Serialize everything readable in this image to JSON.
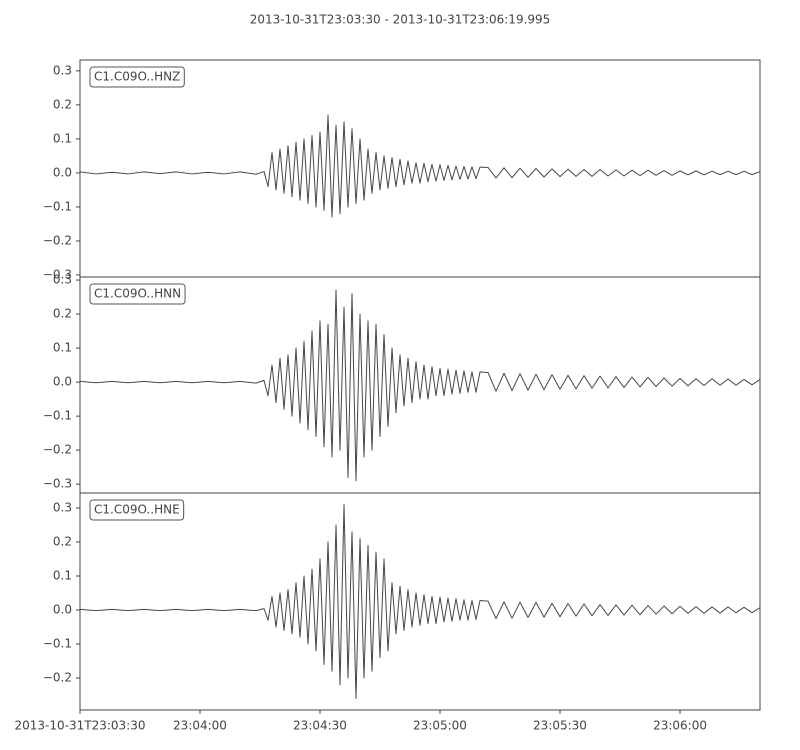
{
  "chart_data": [
    {
      "type": "line",
      "title": "2013-10-31T23:03:30  -  2013-10-31T23:06:19.995",
      "label": "C1.C09O..HNZ",
      "color": "#474747",
      "xlim": [
        0,
        169.995
      ],
      "ylim": [
        -0.306,
        0.332
      ],
      "yticks": [
        {
          "value": -0.3,
          "label": "−0.3"
        },
        {
          "value": -0.2,
          "label": "−0.2"
        },
        {
          "value": -0.1,
          "label": "−0.1"
        },
        {
          "value": 0.0,
          "label": "0.0"
        },
        {
          "value": 0.1,
          "label": "0.1"
        },
        {
          "value": 0.2,
          "label": "0.2"
        },
        {
          "value": 0.3,
          "label": "0.3"
        }
      ],
      "x": [
        0,
        4,
        8,
        12,
        16,
        20,
        24,
        28,
        32,
        36,
        40,
        44,
        46,
        47,
        48,
        49,
        50,
        51,
        52,
        53,
        54,
        55,
        56,
        57,
        58,
        59,
        60,
        61,
        62,
        63,
        64,
        65,
        66,
        67,
        68,
        69,
        70,
        71,
        72,
        73,
        74,
        75,
        76,
        77,
        78,
        79,
        80,
        81,
        82,
        83,
        84,
        85,
        86,
        87,
        88,
        89,
        90,
        91,
        92,
        93,
        94,
        95,
        96,
        97,
        98,
        99,
        100,
        102,
        104,
        106,
        108,
        110,
        112,
        114,
        116,
        118,
        120,
        122,
        124,
        126,
        128,
        130,
        132,
        134,
        136,
        138,
        140,
        142,
        144,
        146,
        148,
        150,
        152,
        154,
        156,
        158,
        160,
        162,
        164,
        166,
        168,
        170
      ],
      "values": [
        0.003,
        -0.003,
        0.002,
        -0.003,
        0.003,
        -0.002,
        0.003,
        -0.003,
        0.002,
        -0.003,
        0.003,
        -0.004,
        0.004,
        -0.04,
        0.06,
        -0.05,
        0.07,
        -0.06,
        0.08,
        -0.07,
        0.09,
        -0.08,
        0.1,
        -0.09,
        0.11,
        -0.1,
        0.12,
        -0.11,
        0.17,
        -0.13,
        0.14,
        -0.12,
        0.15,
        -0.1,
        0.13,
        -0.09,
        0.1,
        -0.08,
        0.07,
        -0.06,
        0.06,
        -0.05,
        0.05,
        -0.045,
        0.045,
        -0.04,
        0.04,
        -0.035,
        0.035,
        -0.03,
        0.03,
        -0.03,
        0.028,
        -0.026,
        0.025,
        -0.024,
        0.024,
        -0.022,
        0.022,
        -0.02,
        0.02,
        -0.019,
        0.019,
        -0.018,
        0.018,
        -0.017,
        0.017,
        0.016,
        -0.015,
        0.015,
        -0.014,
        0.014,
        -0.013,
        0.013,
        -0.012,
        0.012,
        -0.011,
        0.011,
        -0.01,
        0.01,
        -0.01,
        0.01,
        -0.009,
        0.009,
        -0.009,
        0.008,
        -0.008,
        0.008,
        -0.007,
        0.007,
        -0.007,
        0.006,
        -0.006,
        0.006,
        -0.006,
        0.005,
        -0.005,
        0.005,
        -0.005,
        0.005,
        -0.005,
        0.004
      ]
    },
    {
      "type": "line",
      "label": "C1.C09O..HNN",
      "color": "#474747",
      "xlim": [
        0,
        169.995
      ],
      "ylim": [
        -0.326,
        0.309
      ],
      "yticks": [
        {
          "value": -0.3,
          "label": "−0.3"
        },
        {
          "value": -0.2,
          "label": "−0.2"
        },
        {
          "value": -0.1,
          "label": "−0.1"
        },
        {
          "value": 0.0,
          "label": "0.0"
        },
        {
          "value": 0.1,
          "label": "0.1"
        },
        {
          "value": 0.2,
          "label": "0.2"
        },
        {
          "value": 0.3,
          "label": "0.3"
        }
      ],
      "x": [
        0,
        4,
        8,
        12,
        16,
        20,
        24,
        28,
        32,
        36,
        40,
        44,
        46,
        47,
        48,
        49,
        50,
        51,
        52,
        53,
        54,
        55,
        56,
        57,
        58,
        59,
        60,
        61,
        62,
        63,
        64,
        65,
        66,
        67,
        68,
        69,
        70,
        71,
        72,
        73,
        74,
        75,
        76,
        77,
        78,
        79,
        80,
        81,
        82,
        83,
        84,
        85,
        86,
        87,
        88,
        89,
        90,
        91,
        92,
        93,
        94,
        95,
        96,
        97,
        98,
        99,
        100,
        102,
        104,
        106,
        108,
        110,
        112,
        114,
        116,
        118,
        120,
        122,
        124,
        126,
        128,
        130,
        132,
        134,
        136,
        138,
        140,
        142,
        144,
        146,
        148,
        150,
        152,
        154,
        156,
        158,
        160,
        162,
        164,
        166,
        168,
        170
      ],
      "values": [
        0.002,
        -0.002,
        0.002,
        -0.002,
        0.002,
        -0.002,
        0.002,
        -0.002,
        0.002,
        -0.002,
        0.002,
        -0.003,
        0.005,
        -0.04,
        0.05,
        -0.06,
        0.07,
        -0.08,
        0.08,
        -0.1,
        0.1,
        -0.12,
        0.12,
        -0.14,
        0.15,
        -0.16,
        0.18,
        -0.19,
        0.17,
        -0.22,
        0.27,
        -0.2,
        0.22,
        -0.28,
        0.26,
        -0.29,
        0.2,
        -0.22,
        0.18,
        -0.2,
        0.17,
        -0.16,
        0.14,
        -0.13,
        0.1,
        -0.09,
        0.08,
        -0.07,
        0.07,
        -0.06,
        0.06,
        -0.05,
        0.05,
        -0.05,
        0.045,
        -0.04,
        0.04,
        -0.04,
        0.038,
        -0.035,
        0.035,
        -0.033,
        0.033,
        -0.03,
        0.03,
        -0.03,
        0.03,
        0.028,
        -0.027,
        0.026,
        -0.025,
        0.025,
        -0.024,
        0.023,
        -0.022,
        0.022,
        -0.021,
        0.02,
        -0.02,
        0.019,
        -0.018,
        0.018,
        -0.017,
        0.016,
        -0.016,
        0.015,
        -0.014,
        0.014,
        -0.013,
        0.012,
        -0.012,
        0.011,
        -0.011,
        0.01,
        -0.01,
        0.01,
        -0.009,
        0.009,
        -0.009,
        0.008,
        -0.008,
        0.008
      ]
    },
    {
      "type": "line",
      "label": "C1.C09O..HNE",
      "color": "#474747",
      "xlim": [
        0,
        169.995
      ],
      "ylim": [
        -0.294,
        0.344
      ],
      "yticks": [
        {
          "value": -0.2,
          "label": "−0.2"
        },
        {
          "value": -0.1,
          "label": "−0.1"
        },
        {
          "value": 0.0,
          "label": "0.0"
        },
        {
          "value": 0.1,
          "label": "0.1"
        },
        {
          "value": 0.2,
          "label": "0.2"
        },
        {
          "value": 0.3,
          "label": "0.3"
        }
      ],
      "xticks": [
        {
          "value": 0,
          "label": "2013-10-31T23:03:30"
        },
        {
          "value": 30,
          "label": "23:04:00"
        },
        {
          "value": 60,
          "label": "23:04:30"
        },
        {
          "value": 90,
          "label": "23:05:00"
        },
        {
          "value": 120,
          "label": "23:05:30"
        },
        {
          "value": 150,
          "label": "23:06:00"
        }
      ],
      "x": [
        0,
        4,
        8,
        12,
        16,
        20,
        24,
        28,
        32,
        36,
        40,
        44,
        46,
        47,
        48,
        49,
        50,
        51,
        52,
        53,
        54,
        55,
        56,
        57,
        58,
        59,
        60,
        61,
        62,
        63,
        64,
        65,
        66,
        67,
        68,
        69,
        70,
        71,
        72,
        73,
        74,
        75,
        76,
        77,
        78,
        79,
        80,
        81,
        82,
        83,
        84,
        85,
        86,
        87,
        88,
        89,
        90,
        91,
        92,
        93,
        94,
        95,
        96,
        97,
        98,
        99,
        100,
        102,
        104,
        106,
        108,
        110,
        112,
        114,
        116,
        118,
        120,
        122,
        124,
        126,
        128,
        130,
        132,
        134,
        136,
        138,
        140,
        142,
        144,
        146,
        148,
        150,
        152,
        154,
        156,
        158,
        160,
        162,
        164,
        166,
        168,
        170
      ],
      "values": [
        0.002,
        -0.002,
        0.002,
        -0.002,
        0.002,
        -0.002,
        0.002,
        -0.002,
        0.002,
        -0.002,
        0.002,
        -0.002,
        0.004,
        -0.03,
        0.04,
        -0.05,
        0.05,
        -0.06,
        0.06,
        -0.07,
        0.08,
        -0.08,
        0.1,
        -0.1,
        0.12,
        -0.12,
        0.15,
        -0.16,
        0.2,
        -0.18,
        0.25,
        -0.22,
        0.31,
        -0.2,
        0.23,
        -0.26,
        0.21,
        -0.2,
        0.19,
        -0.18,
        0.17,
        -0.14,
        0.15,
        -0.12,
        0.08,
        -0.07,
        0.07,
        -0.06,
        0.06,
        -0.05,
        0.05,
        -0.045,
        0.045,
        -0.04,
        0.04,
        -0.04,
        0.038,
        -0.035,
        0.035,
        -0.033,
        0.033,
        -0.03,
        0.03,
        -0.03,
        0.028,
        -0.028,
        0.028,
        0.026,
        -0.025,
        0.024,
        -0.024,
        0.023,
        -0.022,
        0.022,
        -0.021,
        0.02,
        -0.02,
        0.019,
        -0.018,
        0.018,
        -0.017,
        0.016,
        -0.016,
        0.015,
        -0.015,
        0.014,
        -0.014,
        0.013,
        -0.012,
        0.012,
        -0.011,
        0.011,
        -0.01,
        0.01,
        -0.01,
        0.009,
        -0.009,
        0.009,
        -0.008,
        0.008,
        -0.008,
        0.007
      ]
    }
  ]
}
